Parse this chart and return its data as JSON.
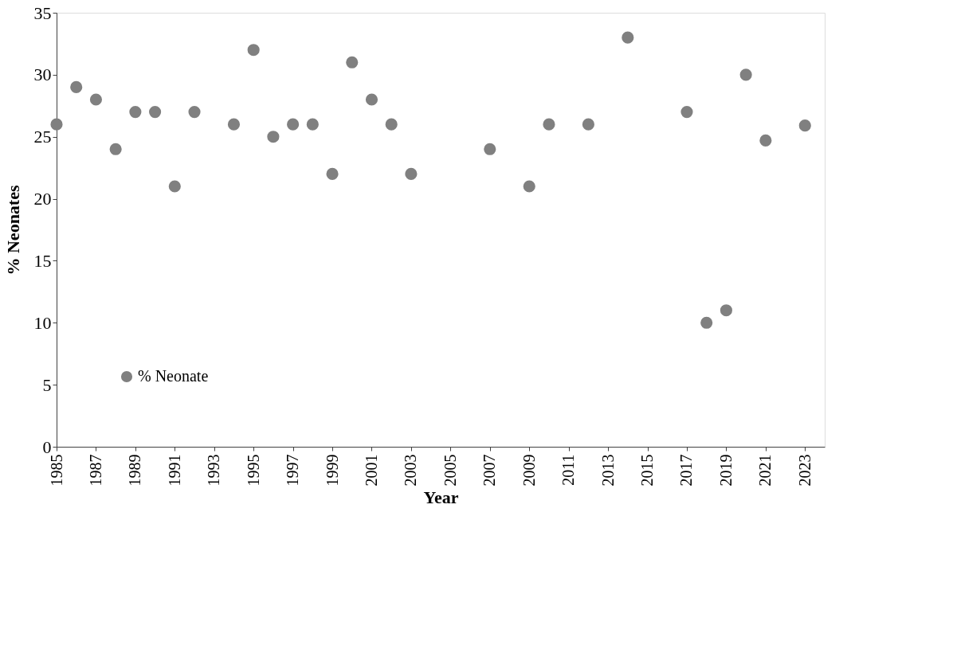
{
  "chart_data": {
    "type": "scatter",
    "xlabel": "Year",
    "ylabel": "% Neonates",
    "x": [
      1985,
      1986,
      1987,
      1988,
      1989,
      1990,
      1991,
      1992,
      1994,
      1995,
      1996,
      1997,
      1998,
      1999,
      2000,
      2001,
      2002,
      2003,
      2007,
      2009,
      2010,
      2012,
      2014,
      2017,
      2018,
      2019,
      2020,
      2021,
      2023
    ],
    "series": [
      {
        "name": "% Neonate",
        "color": "#808080",
        "values": [
          26,
          29,
          28,
          24,
          27,
          27,
          21,
          27,
          26,
          32,
          25,
          26,
          26,
          22,
          31,
          28,
          26,
          22,
          24,
          21,
          26,
          26,
          33,
          27,
          10,
          11,
          30,
          24.7,
          25.9
        ]
      }
    ],
    "xlim": [
      1985,
      2024
    ],
    "xticks": [
      1985,
      1987,
      1989,
      1991,
      1993,
      1995,
      1997,
      1999,
      2001,
      2003,
      2005,
      2007,
      2009,
      2011,
      2013,
      2015,
      2017,
      2019,
      2021,
      2023
    ],
    "ylim": [
      0,
      35
    ],
    "yticks": [
      0,
      5,
      10,
      15,
      20,
      25,
      30,
      35
    ],
    "grid": false,
    "legend": "bottom left",
    "marker": "circle"
  }
}
